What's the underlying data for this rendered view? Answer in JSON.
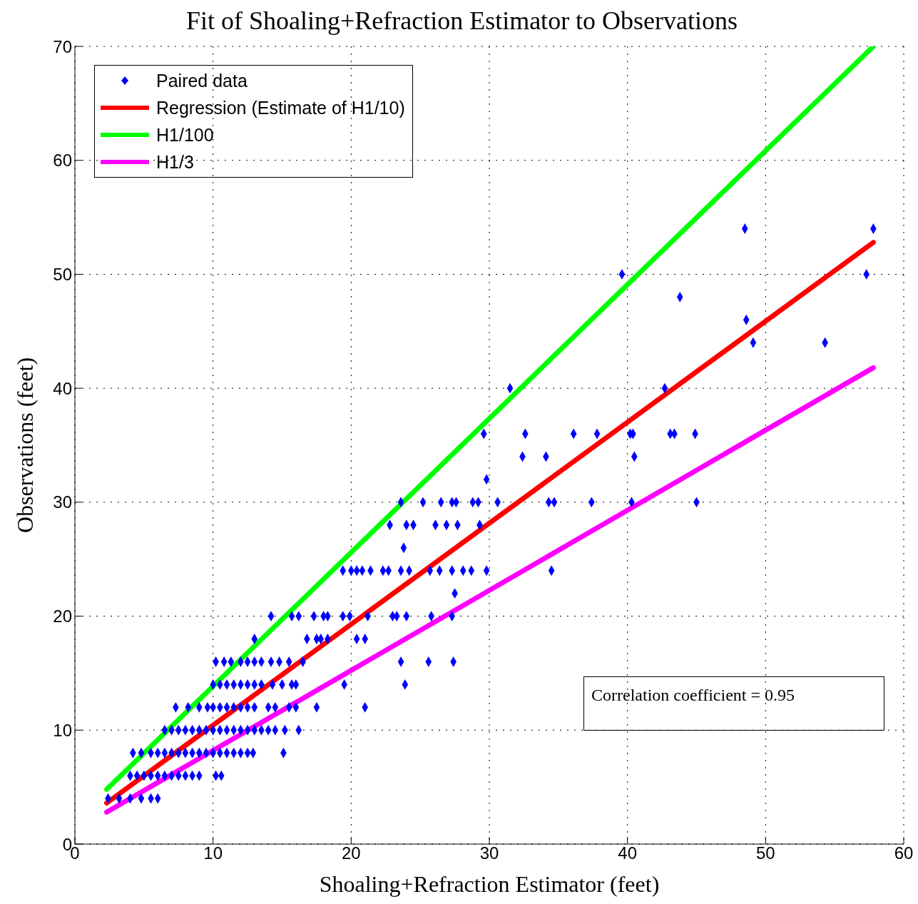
{
  "chart_data": {
    "type": "scatter",
    "title": "Fit of Shoaling+Refraction Estimator to Observations",
    "xlabel": "Shoaling+Refraction Estimator (feet)",
    "ylabel": "Observations (feet)",
    "xlim": [
      0,
      60
    ],
    "xticks": [
      0,
      10,
      20,
      30,
      40,
      50,
      60
    ],
    "ylim": [
      0,
      70
    ],
    "yticks": [
      0,
      10,
      20,
      30,
      40,
      50,
      60,
      70
    ],
    "grid": true,
    "legend": "top left",
    "marker": "diamond",
    "annotations": [
      "Correlation coefficient = 0.95"
    ],
    "series": [
      {
        "name": "Paired data",
        "color": "#0000ff",
        "x": [
          2.4,
          3.2,
          4.0,
          4.8,
          5.5,
          6.0,
          4.0,
          4.5,
          5.0,
          5.5,
          6.0,
          6.5,
          7.0,
          7.5,
          8.0,
          8.5,
          9.0,
          10.2,
          10.6,
          4.2,
          4.8,
          5.5,
          6.0,
          6.5,
          7.0,
          7.5,
          8.0,
          8.5,
          9.0,
          9.5,
          10.0,
          10.5,
          11.0,
          11.5,
          12.0,
          12.5,
          12.9,
          15.1,
          6.5,
          7.0,
          7.5,
          8.0,
          8.5,
          9.0,
          9.5,
          10.0,
          10.5,
          11.0,
          11.5,
          12.0,
          12.5,
          13.0,
          13.5,
          14.0,
          14.5,
          15.2,
          16.2,
          7.3,
          8.2,
          9.0,
          9.6,
          10.0,
          10.5,
          11.0,
          11.5,
          12.0,
          12.5,
          13.0,
          14.0,
          14.5,
          15.5,
          16.0,
          17.5,
          21.0,
          10.0,
          10.5,
          11.0,
          11.5,
          12.0,
          12.5,
          13.0,
          13.5,
          14.3,
          15.0,
          15.7,
          16.0,
          19.5,
          23.9,
          10.2,
          10.8,
          11.3,
          12.0,
          12.5,
          13.0,
          13.5,
          14.2,
          14.8,
          15.5,
          16.5,
          23.6,
          25.6,
          27.4,
          13.0,
          16.8,
          17.5,
          17.8,
          18.3,
          20.4,
          21.0,
          14.2,
          15.7,
          16.2,
          17.3,
          18.0,
          18.3,
          19.4,
          19.9,
          21.2,
          23.0,
          23.3,
          24.0,
          25.8,
          27.3,
          27.5,
          19.4,
          20.0,
          20.4,
          20.8,
          21.4,
          22.3,
          22.7,
          23.6,
          24.2,
          25.7,
          26.4,
          27.3,
          28.1,
          28.7,
          29.8,
          34.5,
          23.8,
          22.8,
          24.0,
          24.5,
          26.1,
          26.9,
          27.7,
          29.3,
          23.6,
          25.2,
          26.5,
          27.3,
          27.6,
          28.8,
          29.2,
          30.6,
          34.3,
          34.7,
          37.4,
          40.3,
          45.0,
          29.8,
          32.4,
          34.1,
          40.5,
          29.6,
          32.6,
          36.1,
          37.8,
          40.2,
          40.4,
          43.1,
          43.4,
          44.9,
          31.5,
          42.7,
          49.1,
          54.3,
          48.6,
          43.8,
          39.6,
          57.3,
          48.5,
          57.8
        ],
        "values": [
          4,
          4,
          4,
          4,
          4,
          4,
          6,
          6,
          6,
          6,
          6,
          6,
          6,
          6,
          6,
          6,
          6,
          6,
          6,
          8,
          8,
          8,
          8,
          8,
          8,
          8,
          8,
          8,
          8,
          8,
          8,
          8,
          8,
          8,
          8,
          8,
          8,
          8,
          10,
          10,
          10,
          10,
          10,
          10,
          10,
          10,
          10,
          10,
          10,
          10,
          10,
          10,
          10,
          10,
          10,
          10,
          10,
          12,
          12,
          12,
          12,
          12,
          12,
          12,
          12,
          12,
          12,
          12,
          12,
          12,
          12,
          12,
          12,
          12,
          14,
          14,
          14,
          14,
          14,
          14,
          14,
          14,
          14,
          14,
          14,
          14,
          14,
          14,
          16,
          16,
          16,
          16,
          16,
          16,
          16,
          16,
          16,
          16,
          16,
          16,
          16,
          16,
          18,
          18,
          18,
          18,
          18,
          18,
          18,
          20,
          20,
          20,
          20,
          20,
          20,
          20,
          20,
          20,
          20,
          20,
          20,
          20,
          20,
          22,
          24,
          24,
          24,
          24,
          24,
          24,
          24,
          24,
          24,
          24,
          24,
          24,
          24,
          24,
          24,
          24,
          26,
          28,
          28,
          28,
          28,
          28,
          28,
          28,
          30,
          30,
          30,
          30,
          30,
          30,
          30,
          30,
          30,
          30,
          30,
          30,
          30,
          32,
          34,
          34,
          34,
          36,
          36,
          36,
          36,
          36,
          36,
          36,
          36,
          36,
          40,
          40,
          44,
          44,
          46,
          48,
          50,
          50,
          54,
          54
        ]
      },
      {
        "name": "Regression (Estimate of H1/10)",
        "type": "line",
        "color": "#ff0000",
        "line_style": "solid",
        "marker": "none",
        "x": [
          2.3,
          57.8
        ],
        "values": [
          3.6,
          52.8
        ]
      },
      {
        "name": "H1/100",
        "type": "line",
        "color": "#00ff00",
        "line_style": "solid",
        "marker": "none",
        "x": [
          2.3,
          57.8
        ],
        "values": [
          4.8,
          70
        ]
      },
      {
        "name": "H1/3",
        "type": "line",
        "color": "#ff00ff",
        "line_style": "solid",
        "marker": "none",
        "x": [
          2.3,
          57.8
        ],
        "values": [
          2.8,
          41.8
        ]
      }
    ]
  }
}
